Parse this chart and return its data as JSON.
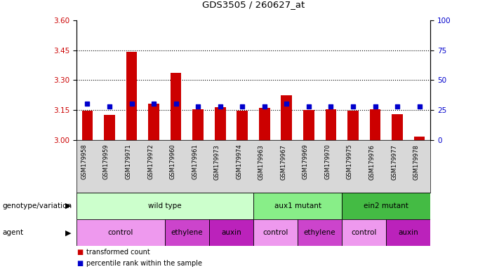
{
  "title": "GDS3505 / 260627_at",
  "samples": [
    "GSM179958",
    "GSM179959",
    "GSM179971",
    "GSM179972",
    "GSM179960",
    "GSM179961",
    "GSM179973",
    "GSM179974",
    "GSM179963",
    "GSM179967",
    "GSM179969",
    "GSM179970",
    "GSM179975",
    "GSM179976",
    "GSM179977",
    "GSM179978"
  ],
  "bar_values": [
    3.148,
    3.126,
    3.44,
    3.182,
    3.335,
    3.155,
    3.165,
    3.147,
    3.16,
    3.222,
    3.15,
    3.155,
    3.148,
    3.155,
    3.128,
    3.015
  ],
  "percentile_values": [
    30,
    28,
    30,
    30,
    30,
    28,
    28,
    28,
    28,
    30,
    28,
    28,
    28,
    28,
    28,
    28
  ],
  "ylim_left": [
    3.0,
    3.6
  ],
  "ylim_right": [
    0,
    100
  ],
  "yticks_left": [
    3.0,
    3.15,
    3.3,
    3.45,
    3.6
  ],
  "yticks_right": [
    0,
    25,
    50,
    75,
    100
  ],
  "bar_color": "#cc0000",
  "dot_color": "#0000cc",
  "bar_base": 3.0,
  "genotype_groups": [
    {
      "label": "wild type",
      "start": 0,
      "end": 8,
      "color": "#ccffcc"
    },
    {
      "label": "aux1 mutant",
      "start": 8,
      "end": 12,
      "color": "#88ee88"
    },
    {
      "label": "ein2 mutant",
      "start": 12,
      "end": 16,
      "color": "#44bb44"
    }
  ],
  "agent_groups": [
    {
      "label": "control",
      "start": 0,
      "end": 4,
      "color": "#ee99ee"
    },
    {
      "label": "ethylene",
      "start": 4,
      "end": 6,
      "color": "#cc44cc"
    },
    {
      "label": "auxin",
      "start": 6,
      "end": 8,
      "color": "#bb22bb"
    },
    {
      "label": "control",
      "start": 8,
      "end": 10,
      "color": "#ee99ee"
    },
    {
      "label": "ethylene",
      "start": 10,
      "end": 12,
      "color": "#cc44cc"
    },
    {
      "label": "control",
      "start": 12,
      "end": 14,
      "color": "#ee99ee"
    },
    {
      "label": "auxin",
      "start": 14,
      "end": 16,
      "color": "#bb22bb"
    }
  ],
  "legend_items": [
    {
      "label": "transformed count",
      "color": "#cc0000"
    },
    {
      "label": "percentile rank within the sample",
      "color": "#0000cc"
    }
  ],
  "left_label_color": "#cc0000",
  "right_label_color": "#0000cc",
  "gridline_ticks": [
    3.15,
    3.3,
    3.45
  ],
  "gridline_color": "#000000"
}
